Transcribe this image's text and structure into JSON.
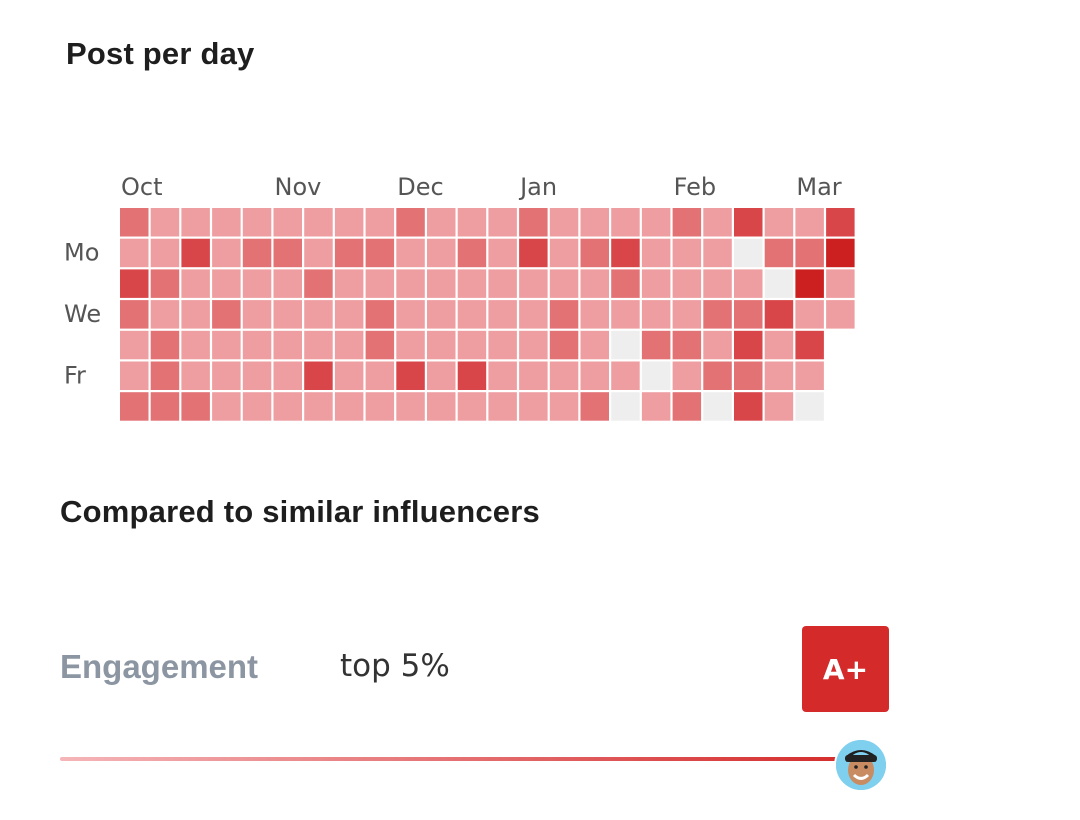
{
  "posting": {
    "title": "Post per day",
    "month_labels": [
      {
        "label": "Oct",
        "week": 0
      },
      {
        "label": "Nov",
        "week": 5
      },
      {
        "label": "Dec",
        "week": 9
      },
      {
        "label": "Jan",
        "week": 13
      },
      {
        "label": "Feb",
        "week": 18
      },
      {
        "label": "Mar",
        "week": 22
      }
    ],
    "day_labels": [
      {
        "label": "Mo",
        "day": 1
      },
      {
        "label": "We",
        "day": 3
      },
      {
        "label": "Fr",
        "day": 5
      }
    ],
    "color_scale": [
      "#eeeeee",
      "#ee9ea1",
      "#e37274",
      "#d94649",
      "#cc1f1f"
    ],
    "weeks": 24,
    "days": 7,
    "levels": [
      [
        2,
        1,
        1,
        1,
        1,
        1,
        1,
        1,
        1,
        2,
        1,
        1,
        1,
        2,
        1,
        1,
        1,
        1,
        2,
        1,
        3,
        1,
        1,
        3
      ],
      [
        1,
        1,
        3,
        1,
        2,
        2,
        1,
        2,
        2,
        1,
        1,
        2,
        1,
        3,
        1,
        2,
        3,
        1,
        1,
        1,
        0,
        2,
        2,
        4
      ],
      [
        3,
        2,
        1,
        1,
        1,
        1,
        2,
        1,
        1,
        1,
        1,
        1,
        1,
        1,
        1,
        1,
        2,
        1,
        1,
        1,
        1,
        0,
        4,
        1
      ],
      [
        2,
        1,
        1,
        2,
        1,
        1,
        1,
        1,
        2,
        1,
        1,
        1,
        1,
        1,
        2,
        1,
        1,
        1,
        1,
        2,
        2,
        3,
        1,
        1
      ],
      [
        1,
        2,
        1,
        1,
        1,
        1,
        1,
        1,
        2,
        1,
        1,
        1,
        1,
        1,
        2,
        1,
        0,
        2,
        2,
        1,
        3,
        1,
        3,
        -1
      ],
      [
        1,
        2,
        1,
        1,
        1,
        1,
        3,
        1,
        1,
        3,
        1,
        3,
        1,
        1,
        1,
        1,
        1,
        0,
        1,
        2,
        2,
        1,
        1,
        -1
      ],
      [
        2,
        2,
        2,
        1,
        1,
        1,
        1,
        1,
        1,
        1,
        1,
        1,
        1,
        1,
        1,
        2,
        0,
        1,
        2,
        0,
        3,
        1,
        0,
        -1
      ]
    ]
  },
  "comparison": {
    "title": "Compared to similar influencers",
    "metric_label": "Engagement",
    "rank_text": "top 5%",
    "grade": "A+",
    "progress_fraction": 0.97,
    "bar_gradient": [
      "#f5b5b8",
      "#d42a2a"
    ]
  }
}
